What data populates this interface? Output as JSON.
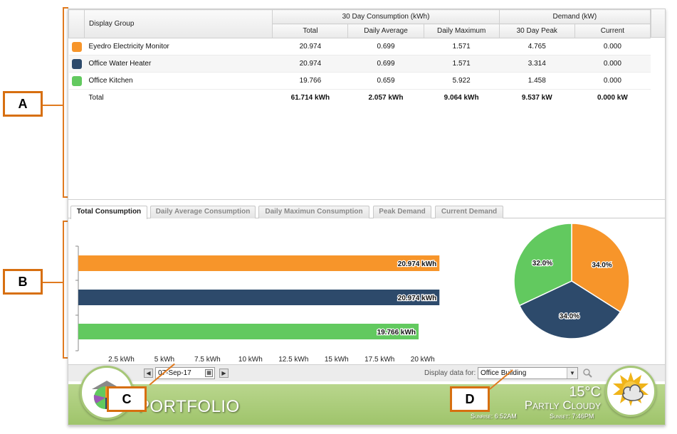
{
  "table": {
    "col_display_group": "Display Group",
    "group_consumption": "30 Day Consumption (kWh)",
    "group_demand": "Demand (kW)",
    "col_total": "Total",
    "col_daily_average": "Daily Average",
    "col_daily_maximum": "Daily Maximum",
    "col_peak": "30 Day Peak",
    "col_current": "Current",
    "rows": [
      {
        "name": "Eyedro Electricity Monitor",
        "color": "#f7952a",
        "total": "20.974",
        "daily_average": "0.699",
        "daily_maximum": "1.571",
        "peak": "4.765",
        "current": "0.000"
      },
      {
        "name": "Office Water Heater",
        "color": "#2d4a6b",
        "total": "20.974",
        "daily_average": "0.699",
        "daily_maximum": "1.571",
        "peak": "3.314",
        "current": "0.000"
      },
      {
        "name": "Office Kitchen",
        "color": "#62c95f",
        "total": "19.766",
        "daily_average": "0.659",
        "daily_maximum": "5.922",
        "peak": "1.458",
        "current": "0.000"
      }
    ],
    "total_row": {
      "name": "Total",
      "total": "61.714 kWh",
      "daily_average": "2.057 kWh",
      "daily_maximum": "9.064 kWh",
      "peak": "9.537 kW",
      "current": "0.000 kW"
    }
  },
  "tabs": [
    {
      "label": "Total Consumption",
      "active": true
    },
    {
      "label": "Daily Average Consumption",
      "active": false
    },
    {
      "label": "Daily Maximun Consumption",
      "active": false
    },
    {
      "label": "Peak Demand",
      "active": false
    },
    {
      "label": "Current Demand",
      "active": false
    }
  ],
  "chart_data": [
    {
      "type": "bar",
      "orientation": "horizontal",
      "categories": [
        "Eyedro Electricity Monitor",
        "Office Water Heater",
        "Office Kitchen"
      ],
      "values": [
        20.974,
        20.974,
        19.766
      ],
      "value_labels": [
        "20.974 kWh",
        "20.974 kWh",
        "19.766 kWh"
      ],
      "colors": [
        "#f7952a",
        "#2d4a6b",
        "#62c95f"
      ],
      "xlim": [
        0,
        21.5
      ],
      "x_ticks": [
        2.5,
        5,
        7.5,
        10,
        12.5,
        15,
        17.5,
        20
      ],
      "x_tick_labels": [
        "2.5 kWh",
        "5 kWh",
        "7.5 kWh",
        "10 kWh",
        "12.5 kWh",
        "15 kWh",
        "17.5 kWh",
        "20 kWh"
      ],
      "grid": false
    },
    {
      "type": "pie",
      "categories": [
        "Eyedro Electricity Monitor",
        "Office Water Heater",
        "Office Kitchen"
      ],
      "values": [
        34.0,
        34.0,
        32.0
      ],
      "value_labels": [
        "34.0%",
        "34.0%",
        "32.0%"
      ],
      "colors": [
        "#f7952a",
        "#2d4a6b",
        "#62c95f"
      ]
    }
  ],
  "toolbar": {
    "prev_label": "◀",
    "next_label": "▶",
    "date": "07-Sep-17",
    "display_label": "Display data for:",
    "display_value": "Office Building"
  },
  "banner": {
    "title": "PORTFOLIO",
    "temperature": "15°C",
    "condition": "Partly Cloudy",
    "sunrise_label": "Sunrise",
    "sunrise_time": "6:52AM",
    "sunset_label": "Sunset",
    "sunset_time": "7:46PM"
  },
  "callouts": {
    "a": "A",
    "b": "B",
    "c": "C",
    "d": "D"
  }
}
